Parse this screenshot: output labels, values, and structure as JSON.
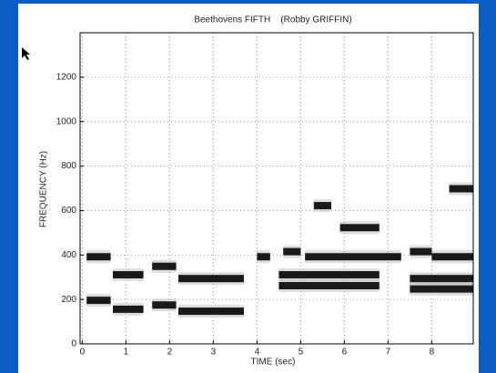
{
  "chart_data": {
    "type": "spectrogram",
    "title": "Beethovens FIFTH    (Robby GRIFFIN)",
    "x_label": "TIME (sec)",
    "y_label": "FREQUENCY (Hz)",
    "xlim": [
      -0.05,
      8.95
    ],
    "ylim": [
      0,
      1400
    ],
    "xticks": [
      0,
      1,
      2,
      3,
      4,
      5,
      6,
      7,
      8
    ],
    "yticks": [
      0,
      200,
      400,
      600,
      800,
      1000,
      1200
    ],
    "grid": true,
    "color": "#1a1a1a",
    "notes": [
      {
        "start": 0.1,
        "end": 0.65,
        "freq": 392
      },
      {
        "start": 0.1,
        "end": 0.65,
        "freq": 196
      },
      {
        "start": 0.7,
        "end": 1.4,
        "freq": 311
      },
      {
        "start": 0.7,
        "end": 1.4,
        "freq": 156
      },
      {
        "start": 1.6,
        "end": 2.15,
        "freq": 349
      },
      {
        "start": 1.6,
        "end": 2.15,
        "freq": 175
      },
      {
        "start": 2.2,
        "end": 3.7,
        "freq": 294
      },
      {
        "start": 2.2,
        "end": 3.7,
        "freq": 147
      },
      {
        "start": 4.0,
        "end": 4.3,
        "freq": 392
      },
      {
        "start": 4.6,
        "end": 5.0,
        "freq": 415
      },
      {
        "start": 4.5,
        "end": 6.8,
        "freq": 311
      },
      {
        "start": 4.5,
        "end": 6.8,
        "freq": 262
      },
      {
        "start": 5.3,
        "end": 5.7,
        "freq": 622
      },
      {
        "start": 5.1,
        "end": 7.3,
        "freq": 392
      },
      {
        "start": 5.9,
        "end": 6.8,
        "freq": 523
      },
      {
        "start": 7.5,
        "end": 8.0,
        "freq": 415
      },
      {
        "start": 8.0,
        "end": 8.95,
        "freq": 392
      },
      {
        "start": 7.5,
        "end": 8.95,
        "freq": 294
      },
      {
        "start": 7.5,
        "end": 8.95,
        "freq": 247
      },
      {
        "start": 8.4,
        "end": 8.95,
        "freq": 698
      }
    ]
  }
}
